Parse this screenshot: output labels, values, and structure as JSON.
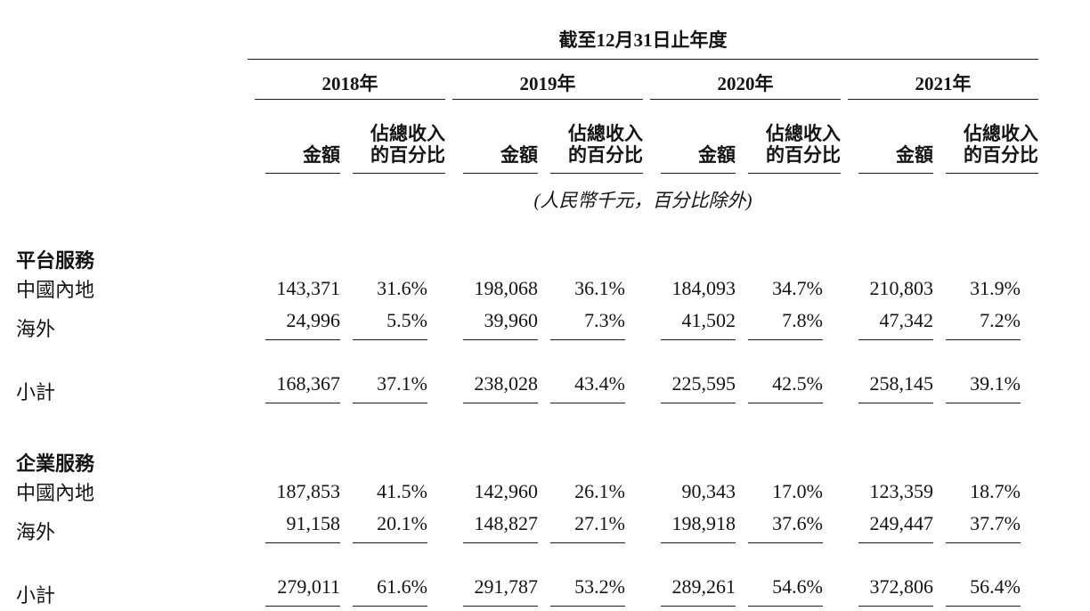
{
  "table": {
    "title": "截至12月31日止年度",
    "unit_note": "(人民幣千元，百分比除外)",
    "years": [
      "2018年",
      "2019年",
      "2020年",
      "2021年"
    ],
    "col_amount": "金額",
    "col_pct_line1": "佔總收入",
    "col_pct_line2": "的百分比",
    "sections": [
      {
        "header": "平台服務",
        "rows": [
          {
            "label": "中國內地",
            "values": [
              "143,371",
              "31.6%",
              "198,068",
              "36.1%",
              "184,093",
              "34.7%",
              "210,803",
              "31.9%"
            ]
          },
          {
            "label": "海外",
            "values": [
              "24,996",
              "5.5%",
              "39,960",
              "7.3%",
              "41,502",
              "7.8%",
              "47,342",
              "7.2%"
            ]
          }
        ],
        "subtotal": {
          "label": "小計",
          "values": [
            "168,367",
            "37.1%",
            "238,028",
            "43.4%",
            "225,595",
            "42.5%",
            "258,145",
            "39.1%"
          ]
        }
      },
      {
        "header": "企業服務",
        "rows": [
          {
            "label": "中國內地",
            "values": [
              "187,853",
              "41.5%",
              "142,960",
              "26.1%",
              "90,343",
              "17.0%",
              "123,359",
              "18.7%"
            ]
          },
          {
            "label": "海外",
            "values": [
              "91,158",
              "20.1%",
              "148,827",
              "27.1%",
              "198,918",
              "37.6%",
              "249,447",
              "37.7%"
            ]
          }
        ],
        "subtotal": {
          "label": "小計",
          "values": [
            "279,011",
            "61.6%",
            "291,787",
            "53.2%",
            "289,261",
            "54.6%",
            "372,806",
            "56.4%"
          ]
        }
      }
    ]
  }
}
